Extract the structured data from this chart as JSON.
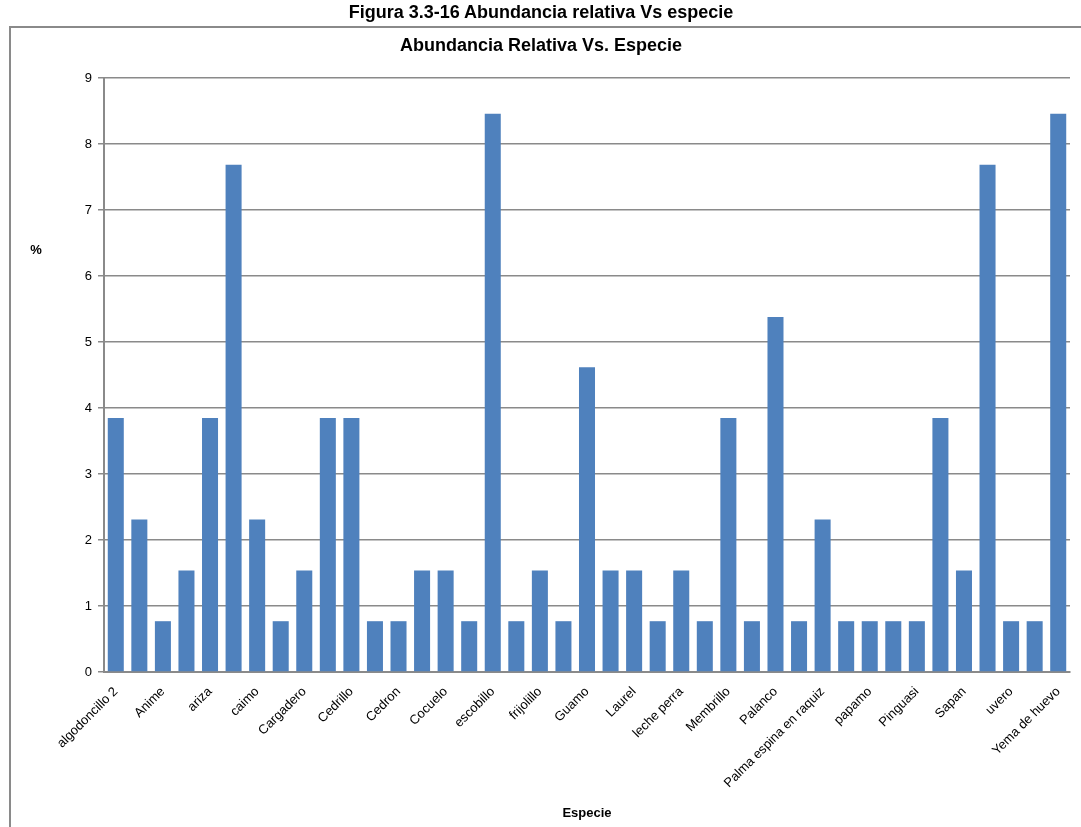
{
  "chart_data": {
    "type": "bar",
    "title": "Figura 3.3-16 Abundancia relativa Vs especie",
    "subtitle": "Abundancia Relativa Vs. Especie",
    "xlabel": "Especie",
    "ylabel": "%",
    "categories": [
      "algodoncillo 2",
      null,
      "Anime",
      null,
      "ariza",
      null,
      "caimo",
      null,
      "Cargadero",
      null,
      "Cedrillo",
      null,
      "Cedron",
      null,
      "Cocuelo",
      null,
      "escobillo",
      null,
      "frijolillo",
      null,
      "Guamo",
      null,
      "Laurel",
      null,
      "leche perra",
      null,
      "Membrillo",
      null,
      "Palanco",
      null,
      "Palma espina en raquiz",
      null,
      "papamo",
      null,
      "Pinguasi",
      null,
      "Sapan",
      null,
      "uvero",
      null,
      "Yema de huevo"
    ],
    "values": [
      3.85,
      2.31,
      0.77,
      1.54,
      3.85,
      7.69,
      2.31,
      0.77,
      1.54,
      3.85,
      3.85,
      0.77,
      0.77,
      1.54,
      1.54,
      0.77,
      8.46,
      0.77,
      1.54,
      0.77,
      4.62,
      1.54,
      1.54,
      0.77,
      1.54,
      0.77,
      3.85,
      0.77,
      5.38,
      0.77,
      2.31,
      0.77,
      0.77,
      0.77,
      0.77,
      3.85,
      1.54,
      7.69,
      0.77,
      0.77,
      8.46
    ],
    "color": "#4f81bd",
    "ylim": [
      0,
      9
    ],
    "yticks": [
      0,
      1,
      2,
      3,
      4,
      5,
      6,
      7,
      8,
      9
    ],
    "grid": "y"
  }
}
